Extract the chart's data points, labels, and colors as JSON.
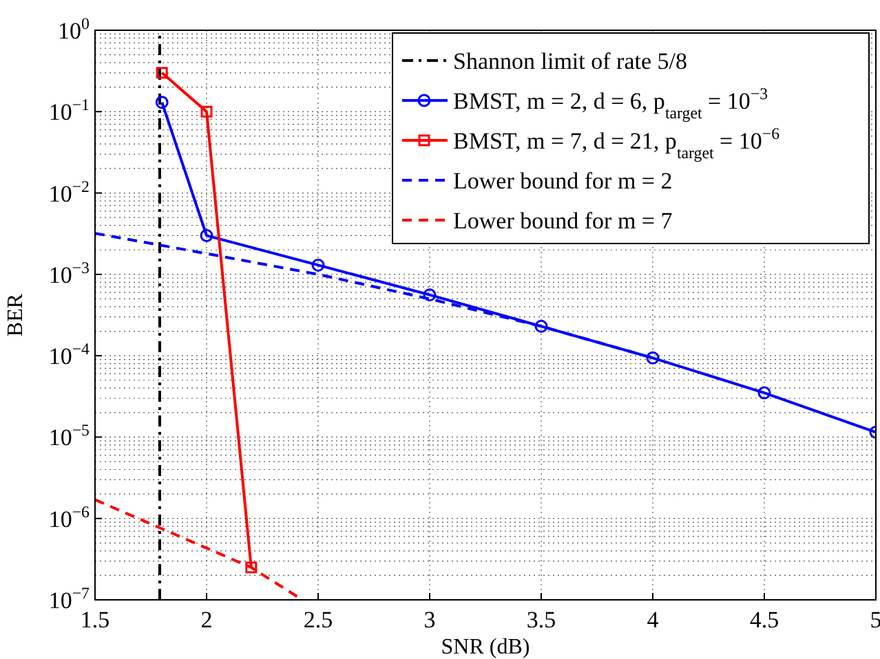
{
  "chart_data": {
    "type": "line",
    "xlabel": "SNR (dB)",
    "ylabel": "BER",
    "log": "y",
    "grid": true,
    "legend": "top right",
    "xlim": [
      1.5,
      5
    ],
    "xticks": [
      1.5,
      2,
      2.5,
      3,
      3.5,
      4,
      4.5,
      5
    ],
    "ylim": [
      1e-07,
      1
    ],
    "yticks": [
      {
        "value": 1e-07,
        "label": "10$^{−7}$"
      },
      {
        "value": 1e-06,
        "label": "10$^{−6}$"
      },
      {
        "value": 1e-05,
        "label": "10$^{−5}$"
      },
      {
        "value": 0.0001,
        "label": "10$^{−4}$"
      },
      {
        "value": 0.001,
        "label": "10$^{−3}$"
      },
      {
        "value": 0.01,
        "label": "10$^{−2}$"
      },
      {
        "value": 0.1,
        "label": "10$^{−1}$"
      },
      {
        "value": 1,
        "label": "10$^{0}$"
      }
    ],
    "series": [
      {
        "name": "Shannon limit of rate 5/8",
        "color": "#000000",
        "line_style": "dashdot",
        "marker": "none",
        "x": [
          1.79,
          1.79
        ],
        "values": [
          1e-07,
          1
        ]
      },
      {
        "name": "BMST,  m = 2,  d = 6,  p$_{target}$ = 10$^{−3}$",
        "color": "#0000ff",
        "line_style": "solid",
        "marker": "circle",
        "x": [
          1.8,
          2,
          2.5,
          3,
          3.5,
          4,
          4.5,
          5
        ],
        "values": [
          0.13,
          0.003,
          0.0013,
          0.00056,
          0.00023,
          9.4e-05,
          3.5e-05,
          1.15e-05
        ]
      },
      {
        "name": "BMST,  m = 7,  d = 21,  p$_{target}$ = 10$^{−6}$",
        "color": "#ff0000",
        "line_style": "solid",
        "marker": "square",
        "x": [
          1.8,
          2,
          2.2
        ],
        "values": [
          0.3,
          0.1,
          2.5e-07
        ]
      },
      {
        "name": "Lower bound for  m = 2",
        "color": "#0000ff",
        "line_style": "dashed",
        "marker": "none",
        "x": [
          1.5,
          2,
          2.5,
          3,
          3.5,
          4
        ],
        "values": [
          0.0032,
          0.0018,
          0.001,
          0.0005,
          0.00023,
          9.4e-05
        ]
      },
      {
        "name": "Lower bound for  m = 7",
        "color": "#ff0000",
        "line_style": "dashed",
        "marker": "none",
        "x": [
          1.5,
          2.2,
          2.43
        ],
        "values": [
          1.7e-06,
          2.5e-07,
          1e-07
        ]
      }
    ]
  }
}
